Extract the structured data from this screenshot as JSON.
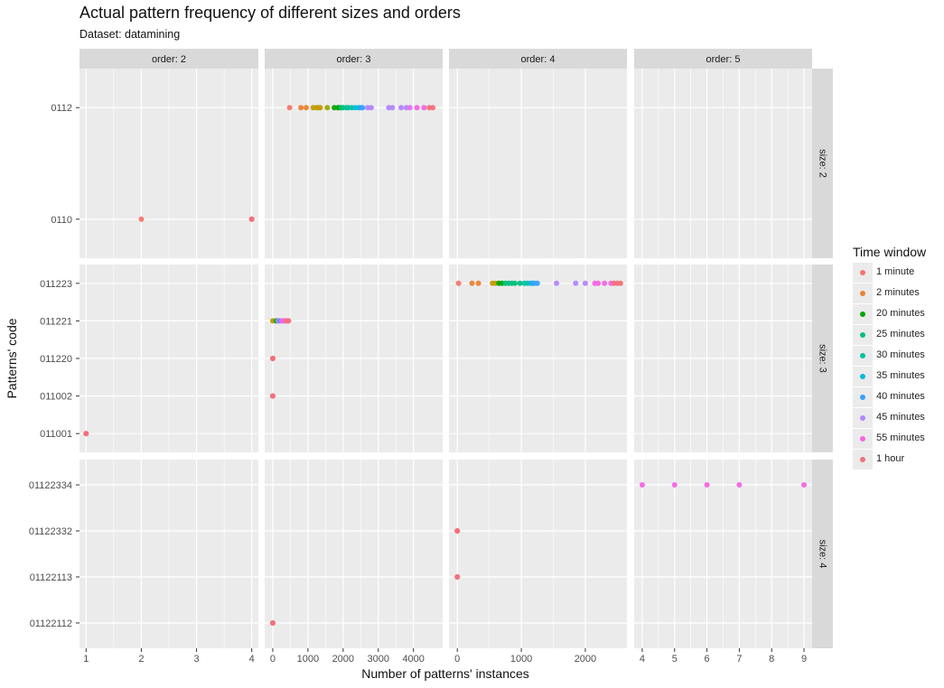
{
  "header": {
    "title": "Actual pattern frequency of different sizes and orders",
    "subtitle": "Dataset: datamining"
  },
  "chart_data": {
    "type": "scatter",
    "title": "Actual pattern frequency of different sizes and orders",
    "subtitle": "Dataset: datamining",
    "xlabel": "Number of patterns' instances",
    "ylabel": "Patterns' code",
    "grid": true,
    "legend_position": "right",
    "legend_title": "Time window",
    "legend": [
      {
        "label": "1 minute",
        "color": "#F8766D"
      },
      {
        "label": "2 minutes",
        "color": "#EA8331"
      },
      {
        "label": "20 minutes",
        "color": "#00A600"
      },
      {
        "label": "25 minutes",
        "color": "#00BF7D"
      },
      {
        "label": "30 minutes",
        "color": "#00C1A3"
      },
      {
        "label": "35 minutes",
        "color": "#00BCD8"
      },
      {
        "label": "40 minutes",
        "color": "#35A2FF"
      },
      {
        "label": "45 minutes",
        "color": "#B385FF"
      },
      {
        "label": "55 minutes",
        "color": "#F564E3"
      },
      {
        "label": "1 hour",
        "color": "#F2707A"
      }
    ],
    "columns": [
      {
        "label": "order: 2",
        "xlim": [
          0.88,
          4.12
        ],
        "ticks": [
          1,
          2,
          3,
          4
        ],
        "tick_labels": [
          "1",
          "2",
          "3",
          "4"
        ]
      },
      {
        "label": "order: 3",
        "xlim": [
          -230,
          4830
        ],
        "ticks": [
          0,
          1000,
          2000,
          3000,
          4000
        ],
        "tick_labels": [
          "0",
          "1000",
          "2000",
          "3000",
          "4000"
        ]
      },
      {
        "label": "order: 4",
        "xlim": [
          -130,
          2650
        ],
        "ticks": [
          0,
          1000,
          2000
        ],
        "tick_labels": [
          "0",
          "1000",
          "2000"
        ]
      },
      {
        "label": "order: 5",
        "xlim": [
          3.75,
          9.25
        ],
        "ticks": [
          4,
          5,
          6,
          7,
          8,
          9
        ],
        "tick_labels": [
          "4",
          "5",
          "6",
          "7",
          "8",
          "9"
        ]
      }
    ],
    "rows": [
      {
        "label": "size: 2",
        "categories": [
          "0110",
          "0112"
        ]
      },
      {
        "label": "size: 3",
        "categories": [
          "011001",
          "011002",
          "011220",
          "011221",
          "011223"
        ]
      },
      {
        "label": "size: 4",
        "categories": [
          "01122112",
          "01122113",
          "01122332",
          "01122334"
        ]
      }
    ],
    "series": [
      {
        "row": 0,
        "col": 0,
        "y": "0110",
        "points": [
          [
            2,
            "#F8766D"
          ],
          [
            4,
            "#F8766D"
          ],
          [
            4,
            "#F2707A"
          ]
        ]
      },
      {
        "row": 0,
        "col": 1,
        "y": "0112",
        "points": [
          [
            480,
            "#F8766D"
          ],
          [
            800,
            "#EA8331"
          ],
          [
            950,
            "#EA8331"
          ],
          [
            1150,
            "#C49A00"
          ],
          [
            1250,
            "#C49A00"
          ],
          [
            1300,
            "#C49A00"
          ],
          [
            1350,
            "#C49A00"
          ],
          [
            1550,
            "#99A800"
          ],
          [
            1750,
            "#00A600"
          ],
          [
            1850,
            "#00A600"
          ],
          [
            1900,
            "#00A600"
          ],
          [
            1950,
            "#00BF7D"
          ],
          [
            2000,
            "#00BF7D"
          ],
          [
            2100,
            "#00BF7D"
          ],
          [
            2150,
            "#00C1A3"
          ],
          [
            2250,
            "#00C1A3"
          ],
          [
            2350,
            "#00BCD8"
          ],
          [
            2450,
            "#00BCD8"
          ],
          [
            2500,
            "#35A2FF"
          ],
          [
            2550,
            "#35A2FF"
          ],
          [
            2700,
            "#B385FF"
          ],
          [
            2800,
            "#B385FF"
          ],
          [
            3300,
            "#B385FF"
          ],
          [
            3400,
            "#B385FF"
          ],
          [
            3650,
            "#B385FF"
          ],
          [
            3800,
            "#B385FF"
          ],
          [
            3900,
            "#E76BF3"
          ],
          [
            4100,
            "#F564E3"
          ],
          [
            4300,
            "#F564E3"
          ],
          [
            4450,
            "#F2707A"
          ],
          [
            4550,
            "#F2707A"
          ]
        ]
      },
      {
        "row": 1,
        "col": 1,
        "y": "011221",
        "points": [
          [
            0,
            "#C49A00"
          ],
          [
            100,
            "#00A600"
          ],
          [
            150,
            "#B385FF"
          ],
          [
            200,
            "#35A2FF"
          ],
          [
            250,
            "#F564E3"
          ],
          [
            300,
            "#F564E3"
          ],
          [
            350,
            "#F564E3"
          ],
          [
            400,
            "#F2707A"
          ],
          [
            450,
            "#F2707A"
          ]
        ]
      },
      {
        "row": 1,
        "col": 1,
        "y": "011220",
        "points": [
          [
            0,
            "#F8766D"
          ],
          [
            0,
            "#F2707A"
          ]
        ]
      },
      {
        "row": 1,
        "col": 1,
        "y": "011002",
        "points": [
          [
            0,
            "#F8766D"
          ],
          [
            0,
            "#F2707A"
          ]
        ]
      },
      {
        "row": 1,
        "col": 0,
        "y": "011001",
        "points": [
          [
            1,
            "#F8766D"
          ],
          [
            1,
            "#F2707A"
          ]
        ]
      },
      {
        "row": 1,
        "col": 2,
        "y": "011223",
        "points": [
          [
            20,
            "#F8766D"
          ],
          [
            230,
            "#EA8331"
          ],
          [
            330,
            "#EA8331"
          ],
          [
            550,
            "#C49A00"
          ],
          [
            600,
            "#C49A00"
          ],
          [
            650,
            "#00A600"
          ],
          [
            700,
            "#00A600"
          ],
          [
            750,
            "#00BF7D"
          ],
          [
            800,
            "#00BF7D"
          ],
          [
            850,
            "#00BF7D"
          ],
          [
            900,
            "#00BF7D"
          ],
          [
            980,
            "#00BF7D"
          ],
          [
            1050,
            "#00C1A3"
          ],
          [
            1100,
            "#00C1A3"
          ],
          [
            1150,
            "#00BCD8"
          ],
          [
            1180,
            "#35A2FF"
          ],
          [
            1200,
            "#35A2FF"
          ],
          [
            1250,
            "#35A2FF"
          ],
          [
            1550,
            "#B385FF"
          ],
          [
            1850,
            "#B385FF"
          ],
          [
            2000,
            "#B385FF"
          ],
          [
            2150,
            "#F564E3"
          ],
          [
            2200,
            "#F564E3"
          ],
          [
            2300,
            "#F564E3"
          ],
          [
            2400,
            "#F564E3"
          ],
          [
            2450,
            "#F2707A"
          ],
          [
            2500,
            "#F2707A"
          ],
          [
            2550,
            "#F2707A"
          ]
        ]
      },
      {
        "row": 2,
        "col": 2,
        "y": "01122332",
        "points": [
          [
            0,
            "#F8766D"
          ],
          [
            0,
            "#F2707A"
          ]
        ]
      },
      {
        "row": 2,
        "col": 2,
        "y": "01122113",
        "points": [
          [
            0,
            "#F8766D"
          ],
          [
            0,
            "#F2707A"
          ]
        ]
      },
      {
        "row": 2,
        "col": 1,
        "y": "01122112",
        "points": [
          [
            0,
            "#F8766D"
          ],
          [
            0,
            "#F2707A"
          ]
        ]
      },
      {
        "row": 2,
        "col": 3,
        "y": "01122334",
        "points": [
          [
            4,
            "#F564E3"
          ],
          [
            5,
            "#F564E3"
          ],
          [
            6,
            "#F564E3"
          ],
          [
            7,
            "#F564E3"
          ],
          [
            9,
            "#F564E3"
          ]
        ]
      }
    ]
  }
}
